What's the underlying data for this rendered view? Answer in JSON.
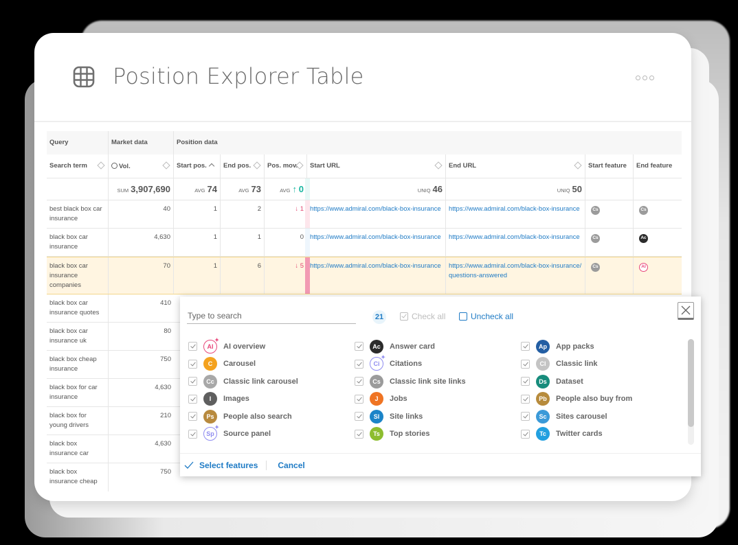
{
  "header": {
    "title": "Position Explorer Table",
    "icon": "table-grid-icon",
    "more_icon": "more-dots-icon"
  },
  "table": {
    "groups": [
      {
        "label": "Query"
      },
      {
        "label": "Market data"
      },
      {
        "label": "Position data"
      }
    ],
    "columns": [
      {
        "label": "Search term",
        "sort": "unsorted"
      },
      {
        "label": "Vol.",
        "icon": "clock-icon",
        "sort": "unsorted"
      },
      {
        "label": "Start pos.",
        "sort": "ascending"
      },
      {
        "label": "End pos.",
        "sort": "unsorted"
      },
      {
        "label": "Pos. mov.",
        "sort": "unsorted"
      },
      {
        "label": "Start URL",
        "sort": "unsorted"
      },
      {
        "label": "End URL",
        "sort": "unsorted"
      },
      {
        "label": "Start feature"
      },
      {
        "label": "End feature"
      }
    ],
    "summary": {
      "vol_label": "SUM",
      "vol_value": "3,907,690",
      "start_label": "AVG",
      "start_value": "74",
      "end_label": "AVG",
      "end_value": "73",
      "mov_label": "AVG",
      "mov_arrow": "↑",
      "mov_value": "0",
      "start_url_label": "UNIQ",
      "start_url_value": "46",
      "end_url_label": "UNIQ",
      "end_url_value": "50"
    },
    "rows": [
      {
        "term": "best black box car insurance",
        "vol": "40",
        "start": "1",
        "end": "2",
        "mov": "↓ 1",
        "start_url": "https://www.admiral.com/black-box-insurance",
        "end_url": "https://www.admiral.com/black-box-insurance",
        "start_feature": "Cs",
        "end_feature": "Cs"
      },
      {
        "term": "black box car insurance",
        "vol": "4,630",
        "start": "1",
        "end": "1",
        "mov": "0",
        "start_url": "https://www.admiral.com/black-box-insurance",
        "end_url": "https://www.admiral.com/black-box-insurance",
        "start_feature": "Cs",
        "end_feature": "Ac"
      },
      {
        "term": "black box car insurance companies",
        "vol": "70",
        "start": "1",
        "end": "6",
        "mov": "↓ 5",
        "start_url": "https://www.admiral.com/black-box-insurance",
        "end_url": "https://www.admiral.com/black-box-insurance/questions-answered",
        "start_feature": "Cs",
        "end_feature": "AI"
      },
      {
        "term": "black box car insurance quotes",
        "vol": "410"
      },
      {
        "term": "black box car insurance uk",
        "vol": "80"
      },
      {
        "term": "black box cheap insurance",
        "vol": "750"
      },
      {
        "term": "black box for car insurance",
        "vol": "4,630"
      },
      {
        "term": "black box for young drivers",
        "vol": "210"
      },
      {
        "term": "black box insurance car",
        "vol": "4,630"
      },
      {
        "term": "black box insurance cheap",
        "vol": "750"
      }
    ]
  },
  "feature_picker": {
    "search_placeholder": "Type to search",
    "count": "21",
    "check_all": "Check all",
    "uncheck_all": "Uncheck all",
    "features": [
      {
        "label": "AI overview",
        "abbr": "AI",
        "color": "#e8477a",
        "outline": true,
        "checked": true
      },
      {
        "label": "Answer card",
        "abbr": "Ac",
        "color": "#2b2b2b",
        "checked": true
      },
      {
        "label": "App packs",
        "abbr": "Ap",
        "color": "#235ea3",
        "checked": true
      },
      {
        "label": "Carousel",
        "abbr": "C",
        "color": "#f4a21e",
        "checked": true
      },
      {
        "label": "Citations",
        "abbr": "Ci",
        "color": "#8f8cf0",
        "outline": true,
        "checked": true
      },
      {
        "label": "Classic link",
        "abbr": "Cl",
        "color": "#c4c4c4",
        "checked": true
      },
      {
        "label": "Classic link carousel",
        "abbr": "Cc",
        "color": "#a8a8a8",
        "checked": true
      },
      {
        "label": "Classic link site links",
        "abbr": "Cs",
        "color": "#9b9b9b",
        "checked": true
      },
      {
        "label": "Dataset",
        "abbr": "Ds",
        "color": "#178c7c",
        "checked": true
      },
      {
        "label": "Images",
        "abbr": "I",
        "color": "#5f5f5f",
        "checked": true
      },
      {
        "label": "Jobs",
        "abbr": "J",
        "color": "#ef7423",
        "checked": true
      },
      {
        "label": "People also buy from",
        "abbr": "Pb",
        "color": "#b78b3c",
        "checked": true
      },
      {
        "label": "People also search",
        "abbr": "Ps",
        "color": "#b88a3e",
        "checked": true
      },
      {
        "label": "Site links",
        "abbr": "Sl",
        "color": "#1b84c8",
        "checked": true
      },
      {
        "label": "Sites carousel",
        "abbr": "Sc",
        "color": "#3b9ad8",
        "checked": true
      },
      {
        "label": "Source panel",
        "abbr": "Sp",
        "color": "#8f8cf0",
        "outline": true,
        "checked": true
      },
      {
        "label": "Top stories",
        "abbr": "Ts",
        "color": "#8dbd2f",
        "checked": true
      },
      {
        "label": "Twitter cards",
        "abbr": "Tc",
        "color": "#22a0e0",
        "checked": true
      }
    ],
    "select_label": "Select features",
    "cancel_label": "Cancel"
  },
  "colors": {
    "accent": "#1f7bc5",
    "negative": "#e2466f",
    "positive": "#17b6a0",
    "highlight_row": "#fff5e1"
  }
}
